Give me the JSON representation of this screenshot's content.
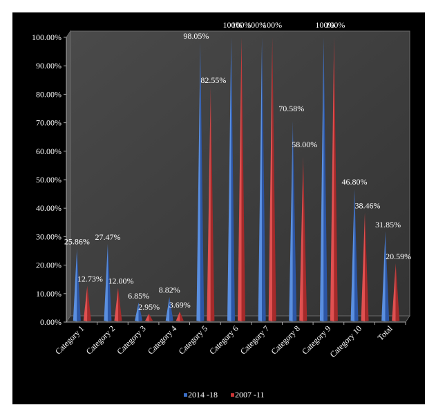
{
  "chart_data": {
    "type": "bar",
    "style": "3d-cone",
    "title": "",
    "xlabel": "",
    "ylabel": "",
    "ylim": [
      0,
      100
    ],
    "y_ticks": [
      "0.00%",
      "10.00%",
      "20.00%",
      "30.00%",
      "40.00%",
      "50.00%",
      "60.00%",
      "70.00%",
      "80.00%",
      "90.00%",
      "100.00%"
    ],
    "categories": [
      "Category 1",
      "Category 2",
      "Category 3",
      "Category 4",
      "Category 5",
      "Category 6",
      "Category 7",
      "Category 8",
      "Category 9",
      "Category 10",
      "Total"
    ],
    "series": [
      {
        "name": "2014 -18",
        "color": "#3b6fc8",
        "values": [
          25.86,
          27.47,
          6.85,
          8.82,
          98.05,
          100,
          100,
          70.58,
          100,
          46.8,
          31.85
        ],
        "labels": [
          "25.86%",
          "27.47%",
          "6.85%",
          "8.82%",
          "98.05%",
          "100%",
          "100%",
          "70.58%",
          "100%",
          "46.80%",
          "31.85%"
        ]
      },
      {
        "name": "2007 -11",
        "color": "#cc3535",
        "values": [
          12.73,
          12.0,
          2.95,
          3.69,
          82.55,
          100,
          100,
          58.0,
          100,
          38.46,
          20.59
        ],
        "labels": [
          "12.73%",
          "12.00%",
          "2.95%",
          "3.69%",
          "82.55%",
          "100%",
          "100%",
          "58.00%",
          "100%",
          "38.46%",
          "20.59%"
        ]
      }
    ],
    "grid": false,
    "legend_position": "bottom",
    "background": "#000000",
    "plot_background": "#404040"
  }
}
